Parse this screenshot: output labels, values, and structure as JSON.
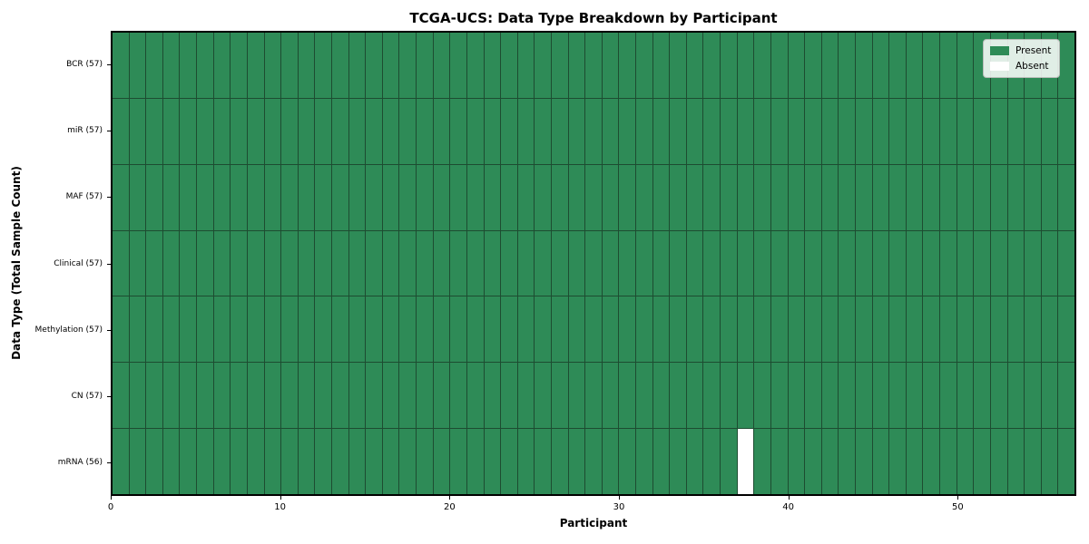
{
  "chart_data": {
    "type": "heatmap",
    "title": "TCGA-UCS: Data Type Breakdown by Participant",
    "xlabel": "Participant",
    "ylabel": "Data Type (Total Sample Count)",
    "n_participants": 57,
    "x_ticks": [
      0,
      10,
      20,
      30,
      40,
      50
    ],
    "x_range": [
      0,
      57
    ],
    "rows": [
      {
        "label": "BCR (57)",
        "data_type": "BCR",
        "total_sample_count": 57,
        "absent_participants": []
      },
      {
        "label": "miR (57)",
        "data_type": "miR",
        "total_sample_count": 57,
        "absent_participants": []
      },
      {
        "label": "MAF (57)",
        "data_type": "MAF",
        "total_sample_count": 57,
        "absent_participants": []
      },
      {
        "label": "Clinical (57)",
        "data_type": "Clinical",
        "total_sample_count": 57,
        "absent_participants": []
      },
      {
        "label": "Methylation (57)",
        "data_type": "Methylation",
        "total_sample_count": 57,
        "absent_participants": []
      },
      {
        "label": "CN (57)",
        "data_type": "CN",
        "total_sample_count": 57,
        "absent_participants": []
      },
      {
        "label": "mRNA (56)",
        "data_type": "mRNA",
        "total_sample_count": 56,
        "absent_participants": [
          37
        ]
      }
    ],
    "legend": [
      {
        "label": "Present",
        "color": "#2e8b57"
      },
      {
        "label": "Absent",
        "color": "#ffffff"
      }
    ],
    "colors": {
      "present": "#2e8b57",
      "absent": "#ffffff",
      "grid_line": "#1d4c31",
      "frame": "#000000",
      "text": "#000000"
    },
    "legend_position": "upper right",
    "grid": "cell-borders"
  }
}
